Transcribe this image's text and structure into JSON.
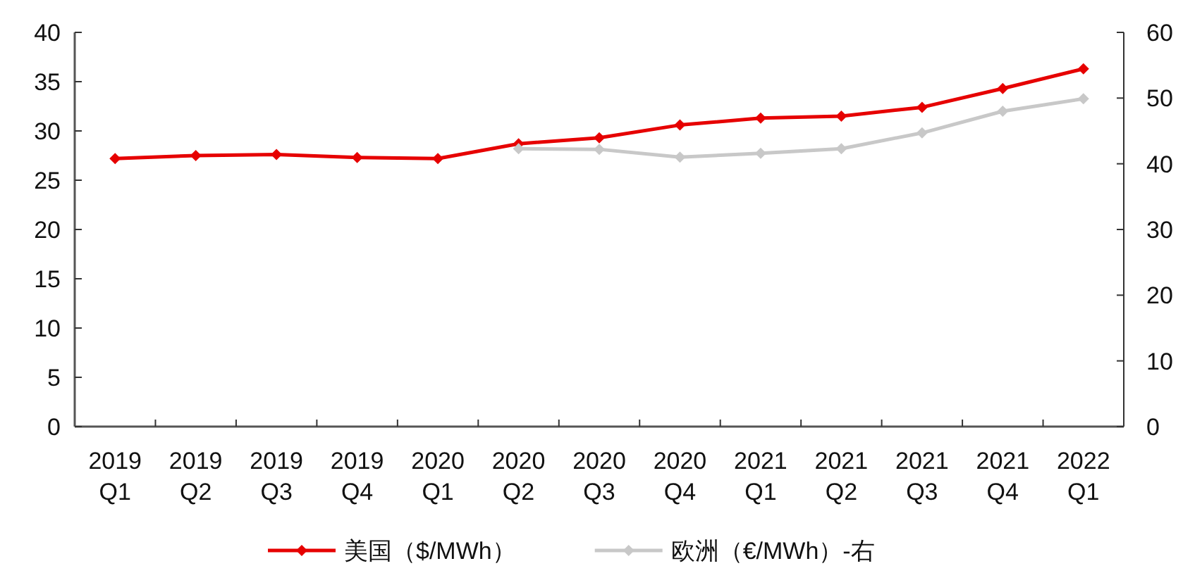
{
  "chart_data": {
    "type": "line",
    "categories": [
      "2019\nQ1",
      "2019\nQ2",
      "2019\nQ3",
      "2019\nQ4",
      "2020\nQ1",
      "2020\nQ2",
      "2020\nQ3",
      "2020\nQ4",
      "2021\nQ1",
      "2021\nQ2",
      "2021\nQ3",
      "2021\nQ4",
      "2022\nQ1"
    ],
    "series": [
      {
        "name": "美国（$/MWh）",
        "color": "#e60000",
        "values": [
          27.2,
          27.5,
          27.6,
          27.3,
          27.2,
          28.7,
          29.3,
          30.6,
          31.3,
          31.5,
          32.4,
          34.3,
          36.3
        ]
      },
      {
        "name": "欧洲（€/MWh）-右",
        "color": "#c8c8c8",
        "axis": "y2",
        "values": [
          null,
          null,
          null,
          null,
          null,
          42.3,
          42.2,
          41.0,
          41.6,
          42.3,
          44.7,
          48.0,
          49.9
        ]
      }
    ],
    "ylim": [
      0,
      40
    ],
    "yticks": [
      0,
      5,
      10,
      15,
      20,
      25,
      30,
      35,
      40
    ],
    "y2lim": [
      0,
      60
    ],
    "y2ticks": [
      0,
      10,
      20,
      30,
      40,
      50,
      60
    ],
    "marker": "diamond",
    "legend": "bottom",
    "grid": false
  }
}
